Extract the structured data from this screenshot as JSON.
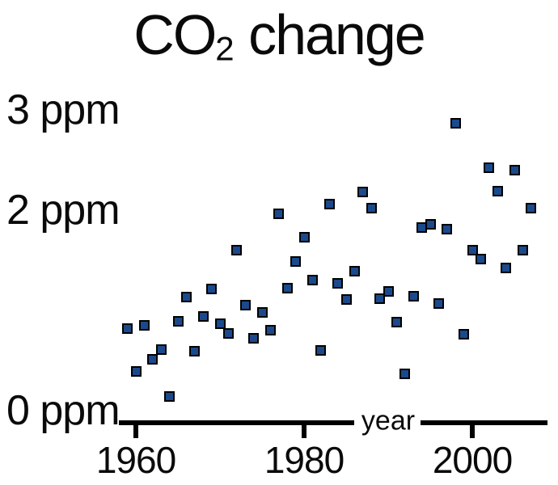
{
  "title": {
    "prefix": "CO",
    "subscript": "2",
    "suffix": " change"
  },
  "y_axis": {
    "labels": [
      {
        "text": "3 ppm",
        "value": 3
      },
      {
        "text": "2 ppm",
        "value": 2
      },
      {
        "text": "0 ppm",
        "value": 0
      }
    ]
  },
  "x_axis": {
    "label": "year",
    "ticks": [
      {
        "text": "1960",
        "value": 1960
      },
      {
        "text": "1980",
        "value": 1980
      },
      {
        "text": "2000",
        "value": 2000
      }
    ]
  },
  "colors": {
    "marker_fill": "#1a4a8c",
    "marker_border": "#000000",
    "axis": "#000000",
    "text": "#0a0a0a",
    "background": "#ffffff"
  },
  "chart_data": {
    "type": "scatter",
    "title": "CO2 change",
    "xlabel": "year",
    "ylabel": "ppm",
    "marker_shape": "square",
    "grid": false,
    "legend": false,
    "x_ticks": [
      1960,
      1980,
      2000
    ],
    "y_ticks": [
      0,
      2,
      3
    ],
    "xlim": [
      1958,
      2009
    ],
    "ylim": [
      -0.1,
      3.2
    ],
    "series": [
      {
        "x": [
          1959,
          1960,
          1961,
          1962,
          1963,
          1964,
          1965,
          1966,
          1967,
          1968,
          1969,
          1970,
          1971,
          1972,
          1973,
          1974,
          1975,
          1976,
          1977,
          1978,
          1979,
          1980,
          1981,
          1982,
          1983,
          1984,
          1985,
          1986,
          1987,
          1988,
          1989,
          1990,
          1991,
          1992,
          1993,
          1994,
          1995,
          1996,
          1997,
          1998,
          1999,
          2000,
          2001,
          2002,
          2003,
          2004,
          2005,
          2006,
          2007
        ],
        "y": [
          0.82,
          0.39,
          0.85,
          0.51,
          0.61,
          0.14,
          0.89,
          1.13,
          0.59,
          0.94,
          1.21,
          0.87,
          0.77,
          1.6,
          1.05,
          0.72,
          0.98,
          0.8,
          1.96,
          1.22,
          1.49,
          1.73,
          1.3,
          0.6,
          2.06,
          1.27,
          1.11,
          1.39,
          2.18,
          2.02,
          1.12,
          1.19,
          0.88,
          0.37,
          1.14,
          1.83,
          1.86,
          1.07,
          1.81,
          2.87,
          0.76,
          1.6,
          1.51,
          2.42,
          2.19,
          1.42,
          2.4,
          1.6,
          2.02
        ]
      }
    ]
  }
}
